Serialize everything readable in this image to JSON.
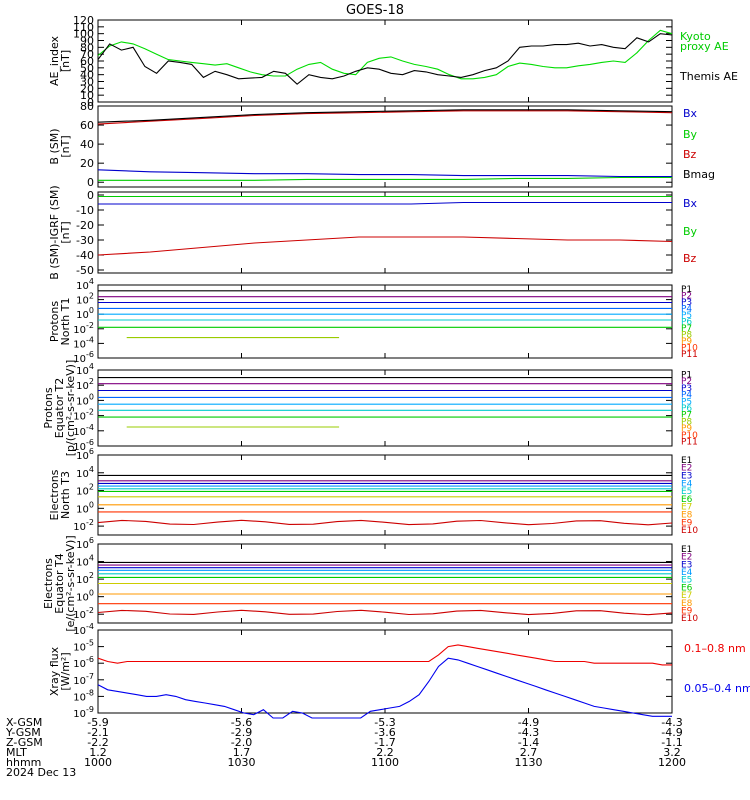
{
  "title": "GOES-18",
  "chart_data": [
    {
      "panel": "ae",
      "type": "line",
      "ylabel": [
        "AE_index",
        "[nT]"
      ],
      "ylim": [
        0,
        120
      ],
      "yticks": [
        "0",
        "10",
        "20",
        "30",
        "40",
        "50",
        "60",
        "70",
        "80",
        "90",
        "100",
        "110",
        "120"
      ],
      "yscale": "linear",
      "series": [
        {
          "name": "Kyoto proxy AE",
          "color": "#00dd00",
          "values": [
            68,
            82,
            88,
            85,
            78,
            70,
            62,
            60,
            58,
            56,
            54,
            56,
            50,
            44,
            40,
            38,
            38,
            48,
            55,
            58,
            48,
            42,
            40,
            58,
            64,
            66,
            60,
            55,
            52,
            48,
            40,
            34,
            34,
            36,
            40,
            52,
            57,
            55,
            52,
            50,
            50,
            53,
            55,
            58,
            60,
            58,
            72,
            90,
            105,
            100
          ]
        },
        {
          "name": "Themis AE",
          "color": "#000000",
          "values": [
            62,
            85,
            76,
            80,
            52,
            42,
            60,
            58,
            55,
            36,
            45,
            40,
            34,
            35,
            36,
            45,
            42,
            26,
            40,
            36,
            34,
            38,
            45,
            50,
            48,
            42,
            40,
            46,
            44,
            40,
            38,
            36,
            40,
            46,
            50,
            60,
            80,
            82,
            82,
            84,
            84,
            86,
            82,
            84,
            80,
            78,
            94,
            88,
            100,
            98
          ]
        }
      ]
    },
    {
      "panel": "b_sm",
      "type": "line",
      "ylabel": [
        "B (SM)",
        "[nT]"
      ],
      "ylim": [
        -5,
        80
      ],
      "yticks": [
        "0",
        "20",
        "40",
        "60",
        "80"
      ],
      "series": [
        {
          "name": "Bx",
          "color": "#0000cc",
          "values": [
            13,
            11,
            10,
            9,
            9,
            8,
            8,
            7,
            7,
            7,
            6,
            6
          ]
        },
        {
          "name": "By",
          "color": "#00cc00",
          "values": [
            2,
            2,
            2,
            2,
            3,
            3,
            3,
            3,
            4,
            4,
            5,
            5
          ]
        },
        {
          "name": "Bz",
          "color": "#cc0000",
          "values": [
            61,
            64,
            67,
            70,
            72,
            73,
            74,
            75,
            75,
            75,
            74,
            73
          ]
        },
        {
          "name": "Bmag",
          "color": "#000000",
          "values": [
            63,
            65,
            68,
            71,
            73,
            74,
            75,
            76,
            76,
            76,
            75,
            74
          ]
        }
      ]
    },
    {
      "panel": "b_igrf",
      "type": "line",
      "ylabel": [
        "B (SM)-IGRF (SM)",
        "[nT]"
      ],
      "ylim": [
        -52,
        2
      ],
      "yticks": [
        "0",
        "-10",
        "-20",
        "-30",
        "-40",
        "-50"
      ],
      "series": [
        {
          "name": "Bx",
          "color": "#0000cc",
          "values": [
            -6,
            -6,
            -6,
            -6,
            -6,
            -6,
            -6,
            -5,
            -5,
            -5,
            -5,
            -5
          ]
        },
        {
          "name": "By",
          "color": "#00cc00",
          "values": [
            -1,
            -1,
            -1,
            -1,
            -1,
            -1,
            -1,
            -1,
            -1,
            -1,
            -1,
            -1
          ]
        },
        {
          "name": "Bz",
          "color": "#cc0000",
          "values": [
            -40,
            -38,
            -35,
            -32,
            -30,
            -28,
            -28,
            -28,
            -29,
            -30,
            -30,
            -31
          ]
        }
      ]
    },
    {
      "panel": "protons_t1",
      "type": "line",
      "yscale": "log",
      "ylabel": [
        "Protons",
        "North T1"
      ],
      "ylim_exp": [
        -6,
        4
      ],
      "yticks": [
        "10^-6",
        "10^-4",
        "10^-2",
        "10^0",
        "10^2",
        "10^4"
      ],
      "series": [
        {
          "name": "P1",
          "color": "#000000",
          "log_level": 3.2
        },
        {
          "name": "P2",
          "color": "#800080",
          "log_level": 2.4
        },
        {
          "name": "P3",
          "color": "#0000cc",
          "log_level": 1.6
        },
        {
          "name": "P4",
          "color": "#0066ff",
          "log_level": 0.8
        },
        {
          "name": "P5",
          "color": "#00aaff",
          "log_level": 0.0
        },
        {
          "name": "P6",
          "color": "#00cccc",
          "log_level": -0.8
        },
        {
          "name": "P7",
          "color": "#00cc00",
          "log_level": -1.8
        },
        {
          "name": "P8",
          "color": "#99cc00",
          "log_level": -3.2,
          "segment": [
            0.05,
            0.42
          ]
        },
        {
          "name": "P9",
          "color": "#ff9900"
        },
        {
          "name": "P10",
          "color": "#ff3300"
        },
        {
          "name": "P11",
          "color": "#cc0000"
        }
      ]
    },
    {
      "panel": "protons_t2",
      "type": "line",
      "yscale": "log",
      "ylabel": [
        "Protons",
        "Equator T2",
        "[p/(cm²-s-sr-keV)]"
      ],
      "ylim_exp": [
        -6,
        4
      ],
      "yticks": [
        "10^-6",
        "10^-4",
        "10^-2",
        "10^0",
        "10^2",
        "10^4"
      ],
      "series": [
        {
          "name": "P1",
          "color": "#000000",
          "log_level": 3.0
        },
        {
          "name": "P2",
          "color": "#800080",
          "log_level": 2.2
        },
        {
          "name": "P3",
          "color": "#0000cc",
          "log_level": 1.3
        },
        {
          "name": "P4",
          "color": "#0066ff",
          "log_level": 0.4
        },
        {
          "name": "P5",
          "color": "#00aaff",
          "log_level": -0.5
        },
        {
          "name": "P6",
          "color": "#00cccc",
          "log_level": -1.3
        },
        {
          "name": "P7",
          "color": "#00cc00",
          "log_level": -2.2
        },
        {
          "name": "P8",
          "color": "#99cc00",
          "log_level": -3.5,
          "segment": [
            0.05,
            0.42
          ]
        },
        {
          "name": "P9",
          "color": "#ff9900"
        },
        {
          "name": "P10",
          "color": "#ff3300"
        },
        {
          "name": "P11",
          "color": "#cc0000"
        }
      ]
    },
    {
      "panel": "electrons_t3",
      "type": "line",
      "yscale": "log",
      "ylabel": [
        "Electrons",
        "North T3"
      ],
      "ylim_exp": [
        -3,
        6
      ],
      "yticks": [
        "10^-2",
        "10^0",
        "10^2",
        "10^4",
        "10^6"
      ],
      "series": [
        {
          "name": "E1",
          "color": "#000000",
          "log_level": 3.7
        },
        {
          "name": "E2",
          "color": "#800080",
          "log_level": 3.1
        },
        {
          "name": "E3",
          "color": "#0000cc",
          "log_level": 2.8
        },
        {
          "name": "E4",
          "color": "#0099ff",
          "log_level": 2.5
        },
        {
          "name": "E5",
          "color": "#00cccc",
          "log_level": 2.2
        },
        {
          "name": "E6",
          "color": "#00cc00",
          "log_level": 1.9
        },
        {
          "name": "E7",
          "color": "#cccc00",
          "log_level": 1.3
        },
        {
          "name": "E8",
          "color": "#ff9900",
          "log_level": 0.4
        },
        {
          "name": "E9",
          "color": "#ff3300",
          "log_level": -0.4
        },
        {
          "name": "E10",
          "color": "#cc0000",
          "log_level": -1.6
        }
      ]
    },
    {
      "panel": "electrons_t4",
      "type": "line",
      "yscale": "log",
      "ylabel": [
        "Electrons",
        "Equator T4",
        "[e/(cm²-s-sr-keV)]"
      ],
      "ylim_exp": [
        -3,
        6
      ],
      "yticks": [
        "10^-2",
        "10^0",
        "10^2",
        "10^4",
        "10^6"
      ],
      "series": [
        {
          "name": "E1",
          "color": "#000000",
          "log_level": 3.9
        },
        {
          "name": "E2",
          "color": "#800080",
          "log_level": 3.6
        },
        {
          "name": "E3",
          "color": "#0000cc",
          "log_level": 3.3
        },
        {
          "name": "E4",
          "color": "#0099ff",
          "log_level": 3.0
        },
        {
          "name": "E5",
          "color": "#00cccc",
          "log_level": 2.6
        },
        {
          "name": "E6",
          "color": "#00cc00",
          "log_level": 2.2
        },
        {
          "name": "E7",
          "color": "#cccc00",
          "log_level": 1.5
        },
        {
          "name": "E8",
          "color": "#ff9900",
          "log_level": 0.3
        },
        {
          "name": "E9",
          "color": "#ff3300",
          "log_level": -0.8
        },
        {
          "name": "E10",
          "color": "#cc0000",
          "log_level": -1.8
        }
      ]
    },
    {
      "panel": "xray",
      "type": "line",
      "yscale": "log",
      "ylabel": [
        "Xray flux",
        "[W/m²]"
      ],
      "ylim_exp": [
        -9,
        -4
      ],
      "yticks": [
        "10^-9",
        "10^-8",
        "10^-7",
        "10^-6",
        "10^-5",
        "10^-4"
      ],
      "series": [
        {
          "name": "0.1–0.8 nm",
          "color": "#ee0000",
          "values": [
            -5.7,
            -5.9,
            -6.0,
            -5.9,
            -5.9,
            -5.9,
            -5.9,
            -5.9,
            -5.9,
            -5.9,
            -5.9,
            -5.9,
            -5.9,
            -5.9,
            -5.9,
            -5.9,
            -5.9,
            -5.9,
            -5.9,
            -5.9,
            -5.9,
            -5.9,
            -5.9,
            -5.9,
            -5.9,
            -5.9,
            -5.9,
            -5.9,
            -5.9,
            -5.9,
            -5.9,
            -5.9,
            -5.9,
            -5.9,
            -5.9,
            -5.5,
            -5.0,
            -4.9,
            -5.0,
            -5.1,
            -5.2,
            -5.3,
            -5.4,
            -5.5,
            -5.6,
            -5.7,
            -5.8,
            -5.9,
            -5.9,
            -5.9,
            -5.9,
            -6.0,
            -6.0,
            -6.0,
            -6.0,
            -6.0,
            -6.0,
            -6.0,
            -6.1,
            -6.1
          ]
        },
        {
          "name": "0.05–0.4 nm",
          "color": "#0000ee",
          "values": [
            -7.3,
            -7.6,
            -7.7,
            -7.8,
            -7.9,
            -8.0,
            -8.0,
            -7.9,
            -8.0,
            -8.2,
            -8.3,
            -8.4,
            -8.5,
            -8.6,
            -8.8,
            -9.0,
            -9.1,
            -8.8,
            -9.3,
            -9.3,
            -8.9,
            -9.0,
            -9.3,
            -9.3,
            -9.3,
            -9.3,
            -9.3,
            -9.3,
            -8.9,
            -8.8,
            -8.7,
            -8.6,
            -8.3,
            -7.9,
            -7.1,
            -6.2,
            -5.7,
            -5.8,
            -6.0,
            -6.2,
            -6.4,
            -6.6,
            -6.8,
            -7.0,
            -7.2,
            -7.4,
            -7.6,
            -7.8,
            -8.0,
            -8.2,
            -8.4,
            -8.6,
            -8.7,
            -8.8,
            -8.9,
            -9.0,
            -9.1,
            -9.2,
            -9.2,
            -9.2
          ]
        }
      ]
    }
  ],
  "legends": {
    "ae": [
      {
        "text": "Kyoto",
        "color": "#00cc00"
      },
      {
        "text": "proxy AE",
        "color": "#00cc00"
      },
      {
        "text": "Themis AE",
        "color": "#000000"
      }
    ],
    "b_sm": [
      {
        "text": "Bx",
        "color": "#0000cc"
      },
      {
        "text": "By",
        "color": "#00cc00"
      },
      {
        "text": "Bz",
        "color": "#cc0000"
      },
      {
        "text": "Bmag",
        "color": "#000000"
      }
    ],
    "b_igrf": [
      {
        "text": "Bx",
        "color": "#0000cc"
      },
      {
        "text": "By",
        "color": "#00cc00"
      },
      {
        "text": "Bz",
        "color": "#cc0000"
      }
    ],
    "xray": [
      {
        "text": "0.1–0.8 nm",
        "color": "#ee0000"
      },
      {
        "text": "0.05–0.4 nm",
        "color": "#0000ee"
      }
    ]
  },
  "xaxis": {
    "row_labels": [
      "X-GSM",
      "Y-GSM",
      "Z-GSM",
      "MLT",
      "hhmm",
      "2024 Dec 13"
    ],
    "columns": [
      {
        "x_gsm": "-5.9",
        "y_gsm": "-2.1",
        "z_gsm": "-2.2",
        "mlt": "1.2",
        "hhmm": "1000"
      },
      {
        "x_gsm": "-5.6",
        "y_gsm": "-2.9",
        "z_gsm": "-2.0",
        "mlt": "1.7",
        "hhmm": "1030"
      },
      {
        "x_gsm": "-5.3",
        "y_gsm": "-3.6",
        "z_gsm": "-1.7",
        "mlt": "2.2",
        "hhmm": "1100"
      },
      {
        "x_gsm": "-4.9",
        "y_gsm": "-4.3",
        "z_gsm": "-1.4",
        "mlt": "2.7",
        "hhmm": "1130"
      },
      {
        "x_gsm": "-4.3",
        "y_gsm": "-4.9",
        "z_gsm": "-1.1",
        "mlt": "3.2",
        "hhmm": "1200"
      }
    ]
  }
}
